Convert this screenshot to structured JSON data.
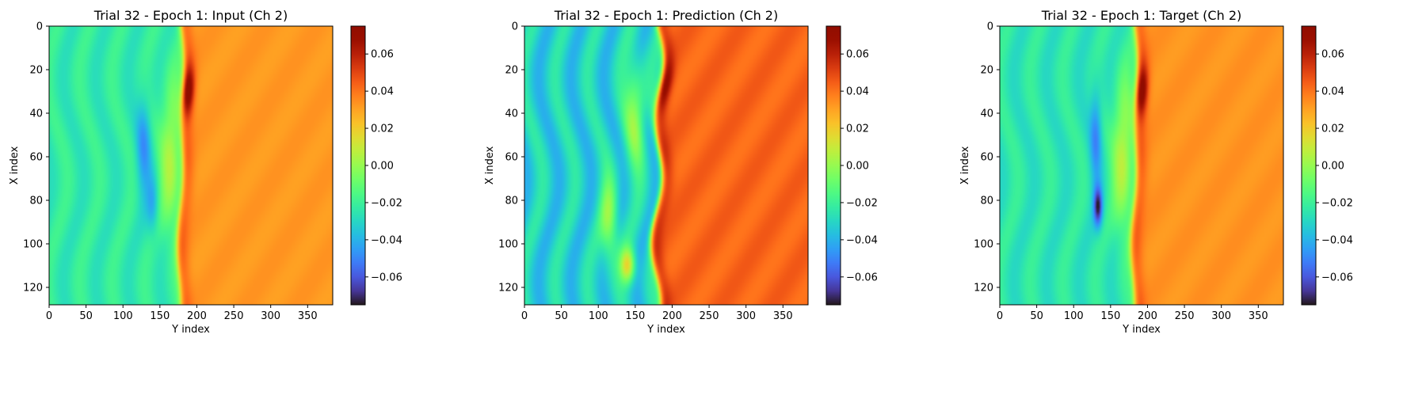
{
  "colormap": "turbo",
  "chart_data": [
    {
      "type": "heatmap",
      "title": "Trial 32 - Epoch 1: Input (Ch 2)",
      "xlabel": "Y index",
      "ylabel": "X index",
      "xlim": [
        0,
        384
      ],
      "ylim": [
        128,
        0
      ],
      "xticks": [
        0,
        50,
        100,
        150,
        200,
        250,
        300,
        350
      ],
      "yticks": [
        0,
        20,
        40,
        60,
        80,
        100,
        120
      ],
      "colorbar": {
        "min": -0.075,
        "max": 0.075,
        "ticks": [
          -0.06,
          -0.04,
          -0.02,
          0.0,
          0.02,
          0.04,
          0.06
        ],
        "tick_labels": [
          "−0.06",
          "−0.04",
          "−0.02",
          "0.00",
          "0.02",
          "0.04",
          "0.06"
        ]
      },
      "field": {
        "front_x": 178,
        "front_curve": 2,
        "left_base": -0.023,
        "right_base": 0.032,
        "peak": 0.068,
        "peak_y": 30,
        "low": [
          {
            "x": 128,
            "y": 55,
            "v": -0.045,
            "rx": 10,
            "ry": 22
          },
          {
            "x": 140,
            "y": 82,
            "v": -0.04,
            "rx": 8,
            "ry": 14
          }
        ],
        "highs": [
          {
            "x": 165,
            "y": 60,
            "v": 0.005,
            "rx": 14,
            "ry": 35
          }
        ],
        "stripes": 0.005
      }
    },
    {
      "type": "heatmap",
      "title": "Trial 32 - Epoch 1: Prediction (Ch 2)",
      "xlabel": "Y index",
      "ylabel": "X index",
      "xlim": [
        0,
        384
      ],
      "ylim": [
        128,
        0
      ],
      "xticks": [
        0,
        50,
        100,
        150,
        200,
        250,
        300,
        350
      ],
      "yticks": [
        0,
        20,
        40,
        60,
        80,
        100,
        120
      ],
      "colorbar": {
        "min": -0.075,
        "max": 0.075,
        "ticks": [
          -0.06,
          -0.04,
          -0.02,
          0.0,
          0.02,
          0.04,
          0.06
        ],
        "tick_labels": [
          "−0.06",
          "−0.04",
          "−0.02",
          "0.00",
          "0.02",
          "0.04",
          "0.06"
        ]
      },
      "field": {
        "front_x": 180,
        "front_curve": 6,
        "left_base": -0.032,
        "right_base": 0.043,
        "peak": 0.062,
        "peak_y": 28,
        "low": [],
        "highs": [
          {
            "x": 150,
            "y": 40,
            "v": 0.0,
            "rx": 14,
            "ry": 25
          },
          {
            "x": 115,
            "y": 90,
            "v": 0.0,
            "rx": 12,
            "ry": 20
          },
          {
            "x": 140,
            "y": 110,
            "v": 0.015,
            "rx": 10,
            "ry": 8
          }
        ],
        "stripes": 0.009
      }
    },
    {
      "type": "heatmap",
      "title": "Trial 32 - Epoch 1: Target (Ch 2)",
      "xlabel": "Y index",
      "ylabel": "X index",
      "xlim": [
        0,
        384
      ],
      "ylim": [
        128,
        0
      ],
      "xticks": [
        0,
        50,
        100,
        150,
        200,
        250,
        300,
        350
      ],
      "yticks": [
        0,
        20,
        40,
        60,
        80,
        100,
        120
      ],
      "colorbar": {
        "min": -0.075,
        "max": 0.075,
        "ticks": [
          -0.06,
          -0.04,
          -0.02,
          0.0,
          0.02,
          0.04,
          0.06
        ],
        "tick_labels": [
          "−0.06",
          "−0.04",
          "−0.02",
          "0.00",
          "0.02",
          "0.04",
          "0.06"
        ]
      },
      "field": {
        "front_x": 182,
        "front_curve": 2,
        "left_base": -0.025,
        "right_base": 0.033,
        "peak": 0.068,
        "peak_y": 30,
        "low": [
          {
            "x": 130,
            "y": 50,
            "v": -0.048,
            "rx": 8,
            "ry": 22
          },
          {
            "x": 133,
            "y": 83,
            "v": -0.07,
            "rx": 6,
            "ry": 9
          }
        ],
        "highs": [
          {
            "x": 167,
            "y": 60,
            "v": 0.008,
            "rx": 14,
            "ry": 35
          }
        ],
        "stripes": 0.005
      }
    }
  ]
}
